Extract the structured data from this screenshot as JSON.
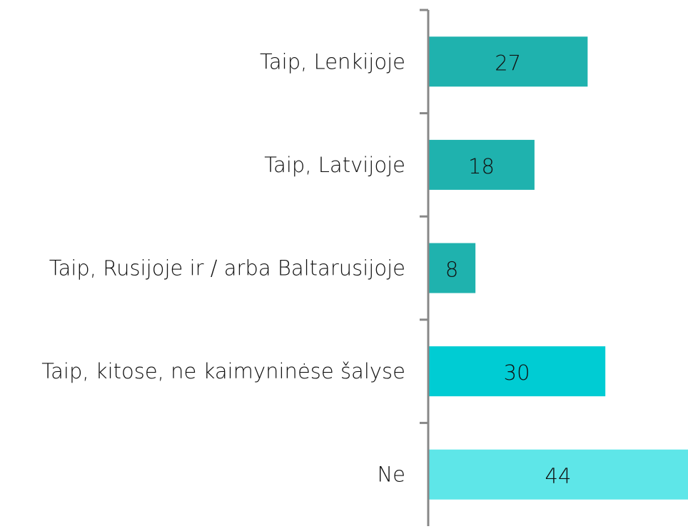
{
  "chart_data": {
    "type": "bar",
    "orientation": "horizontal",
    "categories": [
      "Taip, Lenkijoje",
      "Taip, Latvijoje",
      "Taip, Rusijoje ir / arba Baltarusijoje",
      "Taip, kitose, ne kaimyninėse šalyse",
      "Ne"
    ],
    "values": [
      27,
      18,
      8,
      30,
      44
    ],
    "colors": [
      "#1fb2ae",
      "#1fb2ae",
      "#1fb2ae",
      "#00ccd3",
      "#5ee6e8"
    ]
  }
}
